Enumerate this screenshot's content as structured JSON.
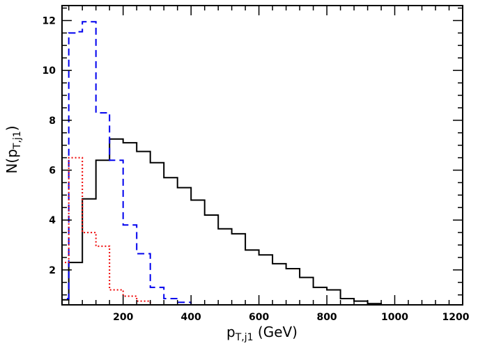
{
  "chart_data": {
    "type": "line",
    "style": "step-histogram",
    "xlabel": {
      "main": "p",
      "sub": "T,j1",
      "tail": " (GeV)"
    },
    "ylabel": {
      "main": "N(p",
      "sub": "T,j1",
      "tail": ")"
    },
    "xlim": [
      20,
      1200
    ],
    "ylim": [
      0.6,
      12.6
    ],
    "x_ticks": [
      200,
      400,
      600,
      800,
      1000,
      1200
    ],
    "y_ticks": [
      2,
      4,
      6,
      8,
      10,
      12
    ],
    "x_tick_labels": [
      "200",
      "400",
      "600",
      "800",
      "1000",
      "1200"
    ],
    "y_tick_labels": [
      "2",
      "4",
      "6",
      "8",
      "10",
      "12"
    ],
    "grid": false,
    "series": [
      {
        "color": "#000000",
        "dash": "solid",
        "bin_edges": [
          20,
          40,
          80,
          120,
          160,
          200,
          240,
          280,
          320,
          360,
          400,
          440,
          480,
          520,
          560,
          600,
          640,
          680,
          720,
          760,
          800,
          840,
          880,
          920,
          960,
          1000,
          1040,
          1080,
          1120
        ],
        "values": [
          0.8,
          2.3,
          4.85,
          6.4,
          7.25,
          7.1,
          6.75,
          6.3,
          5.7,
          5.3,
          4.8,
          4.2,
          3.65,
          3.45,
          2.8,
          2.6,
          2.25,
          2.05,
          1.7,
          1.3,
          1.2,
          0.85,
          0.75,
          0.65,
          0.55,
          0.5,
          0.45,
          0.5
        ]
      },
      {
        "color": "#0000ee",
        "dash": "dashed",
        "bin_edges": [
          20,
          40,
          60,
          80,
          120,
          160,
          200,
          240,
          280,
          320,
          360,
          400
        ],
        "values": [
          0.85,
          11.5,
          11.55,
          11.95,
          8.3,
          6.4,
          3.8,
          2.65,
          1.3,
          0.85,
          0.7
        ]
      },
      {
        "color": "#ee0000",
        "dash": "dotted",
        "bin_edges": [
          20,
          40,
          80,
          120,
          160,
          200,
          240,
          280
        ],
        "values": [
          2.3,
          6.5,
          3.5,
          2.95,
          1.2,
          0.95,
          0.75
        ]
      }
    ]
  }
}
